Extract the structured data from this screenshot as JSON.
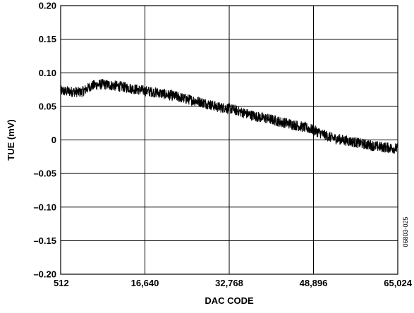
{
  "chart_data": {
    "type": "line",
    "title": "",
    "xlabel": "DAC CODE",
    "ylabel": "TUE (mV)",
    "xlim": [
      512,
      65024
    ],
    "ylim": [
      -0.2,
      0.2
    ],
    "x_ticks": [
      512,
      16640,
      32768,
      48896,
      65024
    ],
    "x_tick_labels": [
      "512",
      "16,640",
      "32,768",
      "48,896",
      "65,024"
    ],
    "y_ticks": [
      0.2,
      0.15,
      0.1,
      0.05,
      0,
      -0.05,
      -0.1,
      -0.15,
      -0.2
    ],
    "y_tick_labels": [
      "0.20",
      "0.15",
      "0.10",
      "0.05",
      "0",
      "–0.05",
      "–0.10",
      "–0.15",
      "–0.20"
    ],
    "grid": true,
    "legend": "none",
    "figure_code": "06803-025",
    "series": [
      {
        "color": "#000000",
        "x": [
          512,
          2500,
          4500,
          6500,
          8500,
          10500,
          12500,
          14500,
          16640,
          18500,
          20500,
          22500,
          24500,
          26500,
          28500,
          30500,
          32768,
          34500,
          36500,
          38500,
          40500,
          42500,
          44500,
          46500,
          48896,
          50500,
          52500,
          54500,
          56500,
          58500,
          60500,
          62500,
          65024
        ],
        "y": [
          0.073,
          0.072,
          0.071,
          0.081,
          0.083,
          0.081,
          0.079,
          0.076,
          0.073,
          0.071,
          0.068,
          0.065,
          0.061,
          0.058,
          0.054,
          0.049,
          0.047,
          0.043,
          0.038,
          0.034,
          0.031,
          0.027,
          0.024,
          0.02,
          0.015,
          0.009,
          0.003,
          0.0,
          -0.003,
          -0.006,
          -0.009,
          -0.011,
          -0.013
        ],
        "noise_band": 0.008
      }
    ]
  }
}
